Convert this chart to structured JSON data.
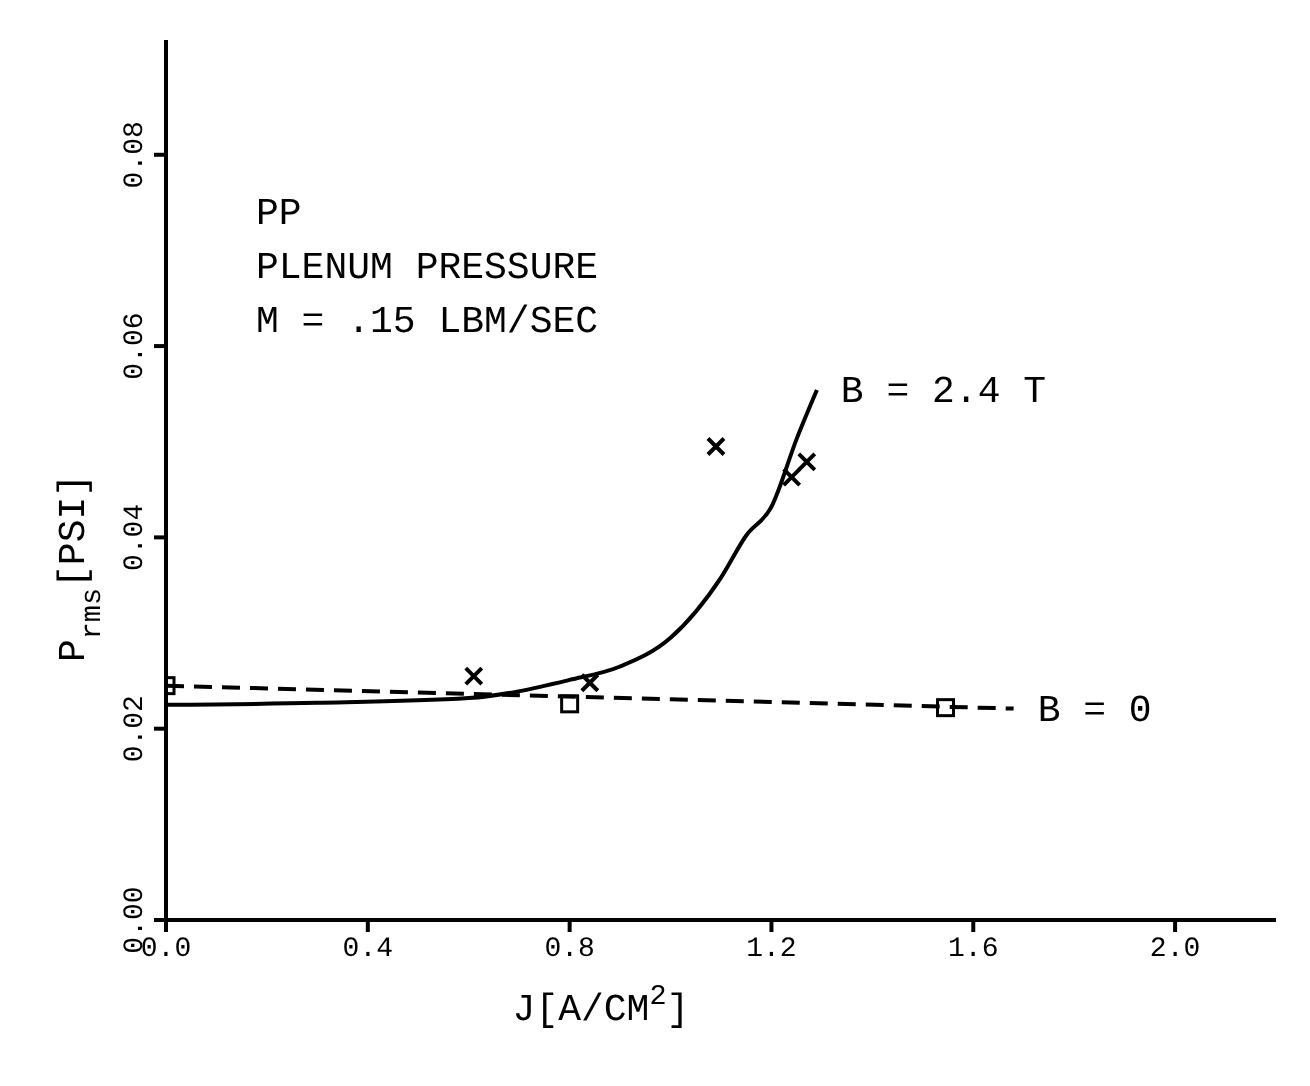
{
  "chart_data": {
    "type": "line",
    "xlabel": "J[A/CM$^{2}$]",
    "ylabel": "P$_{rms}$[PSI]",
    "annotations": [
      "PP",
      "PLENUM PRESSURE",
      "M = .15 LBM/SEC"
    ],
    "xlim": [
      0,
      2.2
    ],
    "xticks": [
      {
        "value": 0,
        "label": "0.0"
      },
      0.4,
      0.8,
      1.2,
      1.6,
      {
        "value": 2,
        "label": "2.0"
      }
    ],
    "ylim": [
      0,
      0.092
    ],
    "yticks": [
      {
        "value": 0,
        "label": "0.00"
      },
      0.02,
      0.04,
      0.06,
      0.08
    ],
    "grid": false,
    "legend": false,
    "series": [
      {
        "name": "B = 2.4 T",
        "type": "line",
        "color": "#000000",
        "marker": "none",
        "line_style": "solid",
        "x": [
          0,
          0.3,
          0.6,
          0.8,
          0.9,
          1.0,
          1.1,
          1.15,
          1.2,
          1.25,
          1.29
        ],
        "values": [
          0.0225,
          0.0227,
          0.0232,
          0.0251,
          0.0265,
          0.0295,
          0.0358,
          0.0402,
          0.0432,
          0.0503,
          0.0554
        ]
      },
      {
        "name": "B = 0",
        "type": "line",
        "color": "#000000",
        "marker": "none",
        "line_style": "dashed",
        "x": [
          0,
          1.68
        ],
        "values": [
          0.0245,
          0.0221
        ]
      },
      {
        "type": "scatter",
        "color": "#000000",
        "marker": "cross",
        "x": [
          0.61,
          0.84,
          1.09,
          1.24,
          1.27
        ],
        "values": [
          0.0255,
          0.0248,
          0.0495,
          0.0463,
          0.0479
        ]
      },
      {
        "type": "scatter",
        "color": "#000000",
        "marker": "square",
        "x": [
          0,
          0.8,
          1.545
        ],
        "values": [
          0.0245,
          0.0226,
          0.0222
        ]
      }
    ]
  }
}
